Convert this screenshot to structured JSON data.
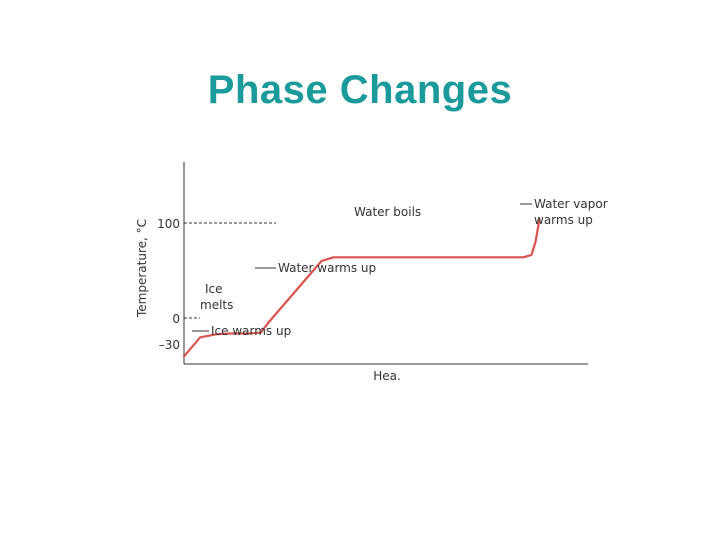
{
  "slide": {
    "title": "Phase Changes"
  },
  "colors": {
    "title": "#1a9a9a",
    "curve": "#d9534f",
    "axis": "#333333"
  },
  "chart_data": {
    "type": "line",
    "title": "",
    "xlabel": "Hea.",
    "ylabel": "Temperature, °C",
    "yticks": [
      {
        "value": 100,
        "label": "100"
      },
      {
        "value": 0,
        "label": "0"
      },
      {
        "value": -30,
        "label": "–30"
      }
    ],
    "ylim": [
      -40,
      225
    ],
    "xlim": [
      0,
      100
    ],
    "grid": false,
    "series": [
      {
        "values_xy": [
          [
            0,
            -30
          ],
          [
            4,
            -5
          ],
          [
            8,
            -1
          ],
          [
            11,
            0
          ],
          [
            16,
            0
          ],
          [
            19,
            1
          ],
          [
            21,
            15
          ],
          [
            34,
            95
          ],
          [
            37,
            100
          ],
          [
            84,
            100
          ],
          [
            86,
            103
          ],
          [
            87,
            120
          ],
          [
            88,
            150
          ]
        ]
      }
    ],
    "annotations": [
      {
        "text": "Water boils"
      },
      {
        "text": "Water vapor"
      },
      {
        "text": "warms up"
      },
      {
        "text": "Water warms up"
      },
      {
        "text": "Ice"
      },
      {
        "text": "melts"
      },
      {
        "text": "Ice warms up"
      }
    ]
  }
}
